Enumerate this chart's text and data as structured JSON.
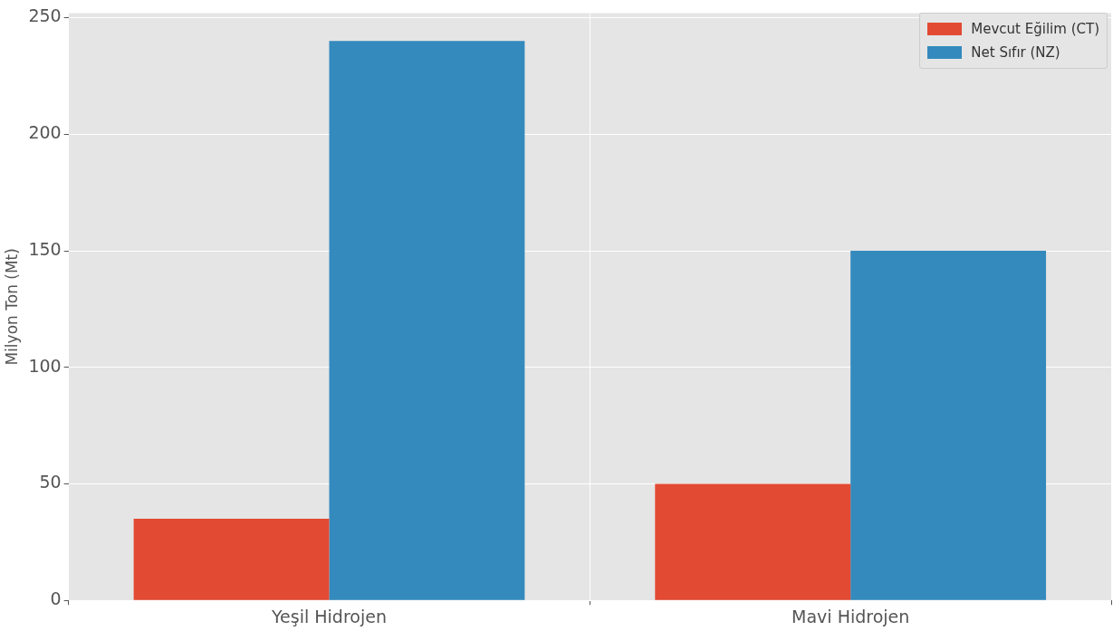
{
  "chart_data": {
    "type": "bar",
    "ylabel": "Milyon Ton (Mt)",
    "categories": [
      "Yeşil Hidrojen",
      "Mavi Hidrojen"
    ],
    "series": [
      {
        "name": "Mevcut Eğilim (CT)",
        "color": "#e24a33",
        "values": [
          35,
          50
        ]
      },
      {
        "name": "Net Sıfır (NZ)",
        "color": "#348abd",
        "values": [
          240,
          150
        ]
      }
    ],
    "ylim": [
      0,
      252
    ],
    "yticks": [
      0,
      50,
      100,
      150,
      200,
      250
    ],
    "grid": true,
    "legend": "top right"
  }
}
